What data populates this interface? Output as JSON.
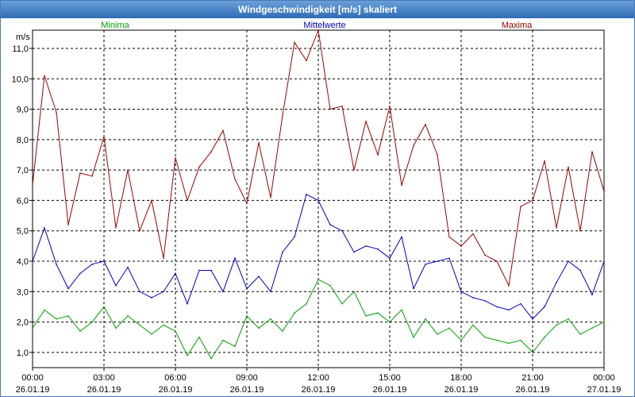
{
  "chart_data": {
    "type": "line",
    "title": "Windgeschwindigkeit [m/s] skaliert",
    "ylabel": "m/s",
    "ylim": [
      0.5,
      11.6
    ],
    "y_ticks": [
      "1,0",
      "2,0",
      "3,0",
      "4,0",
      "5,0",
      "6,0",
      "7,0",
      "8,0",
      "9,0",
      "10,0",
      "11,0"
    ],
    "x_ticks": [
      {
        "time": "00:00",
        "date": "26.01.19"
      },
      {
        "time": "03:00",
        "date": "26.01.19"
      },
      {
        "time": "06:00",
        "date": "26.01.19"
      },
      {
        "time": "09:00",
        "date": "26.01.19"
      },
      {
        "time": "12:00",
        "date": "26.01.19"
      },
      {
        "time": "15:00",
        "date": "26.01.19"
      },
      {
        "time": "18:00",
        "date": "26.01.19"
      },
      {
        "time": "21:00",
        "date": "26.01.19"
      },
      {
        "time": "00:00",
        "date": "27.01.19"
      }
    ],
    "x_unit": "hours since 26.01.19 00:00",
    "xlim": [
      0,
      24
    ],
    "series": [
      {
        "name": "Minima",
        "color": "#00a000",
        "x": [
          0,
          0.5,
          1,
          1.5,
          2,
          2.5,
          3,
          3.5,
          4,
          4.5,
          5,
          5.5,
          6,
          6.5,
          7,
          7.5,
          8,
          8.5,
          9,
          9.5,
          10,
          10.5,
          11,
          11.5,
          12,
          12.5,
          13,
          13.5,
          14,
          14.5,
          15,
          15.5,
          16,
          16.5,
          17,
          17.5,
          18,
          18.5,
          19,
          19.5,
          20,
          20.5,
          21,
          21.5,
          22,
          22.5,
          23,
          23.5,
          24
        ],
        "values": [
          1.8,
          2.4,
          2.1,
          2.2,
          1.7,
          2.0,
          2.5,
          1.8,
          2.2,
          1.9,
          1.6,
          1.9,
          1.7,
          0.9,
          1.5,
          0.8,
          1.4,
          1.2,
          2.2,
          1.8,
          2.1,
          1.7,
          2.3,
          2.6,
          3.4,
          3.2,
          2.6,
          3.0,
          2.2,
          2.3,
          2.0,
          2.4,
          1.5,
          2.1,
          1.6,
          1.8,
          1.4,
          1.9,
          1.5,
          1.4,
          1.3,
          1.4,
          1.0,
          1.5,
          1.9,
          2.1,
          1.6,
          1.8,
          2.0
        ]
      },
      {
        "name": "Mittelwerte",
        "color": "#0000c0",
        "x": [
          0,
          0.5,
          1,
          1.5,
          2,
          2.5,
          3,
          3.5,
          4,
          4.5,
          5,
          5.5,
          6,
          6.5,
          7,
          7.5,
          8,
          8.5,
          9,
          9.5,
          10,
          10.5,
          11,
          11.5,
          12,
          12.5,
          13,
          13.5,
          14,
          14.5,
          15,
          15.5,
          16,
          16.5,
          17,
          17.5,
          18,
          18.5,
          19,
          19.5,
          20,
          20.5,
          21,
          21.5,
          22,
          22.5,
          23,
          23.5,
          24
        ],
        "values": [
          4.0,
          5.1,
          3.9,
          3.1,
          3.6,
          3.9,
          4.0,
          3.2,
          3.8,
          3.0,
          2.8,
          3.0,
          3.6,
          2.6,
          3.7,
          3.7,
          3.0,
          4.1,
          3.1,
          3.5,
          3.0,
          4.3,
          4.8,
          6.2,
          6.0,
          5.2,
          5.0,
          4.3,
          4.5,
          4.4,
          4.1,
          4.8,
          3.1,
          3.9,
          4.0,
          4.1,
          3.0,
          2.8,
          2.7,
          2.5,
          2.4,
          2.6,
          2.1,
          2.5,
          3.3,
          4.0,
          3.7,
          2.9,
          4.0
        ]
      },
      {
        "name": "Maxima",
        "color": "#a00000",
        "x": [
          0,
          0.5,
          1,
          1.5,
          2,
          2.5,
          3,
          3.5,
          4,
          4.5,
          5,
          5.5,
          6,
          6.5,
          7,
          7.5,
          8,
          8.5,
          9,
          9.5,
          10,
          10.5,
          11,
          11.5,
          12,
          12.5,
          13,
          13.5,
          14,
          14.5,
          15,
          15.5,
          16,
          16.5,
          17,
          17.5,
          18,
          18.5,
          19,
          19.5,
          20,
          20.5,
          21,
          21.5,
          22,
          22.5,
          23,
          23.5,
          24
        ],
        "values": [
          6.5,
          10.1,
          8.9,
          5.2,
          6.9,
          6.8,
          8.1,
          5.1,
          7.0,
          5.0,
          6.0,
          4.1,
          7.4,
          6.0,
          7.1,
          7.6,
          8.3,
          6.7,
          5.9,
          7.9,
          6.1,
          8.8,
          11.2,
          10.6,
          11.6,
          9.0,
          9.1,
          7.0,
          8.6,
          7.5,
          9.1,
          6.5,
          7.8,
          8.5,
          7.5,
          4.8,
          4.5,
          4.9,
          4.2,
          4.0,
          3.2,
          5.8,
          6.0,
          7.3,
          5.1,
          7.1,
          5.0,
          7.6,
          6.3
        ]
      }
    ]
  }
}
